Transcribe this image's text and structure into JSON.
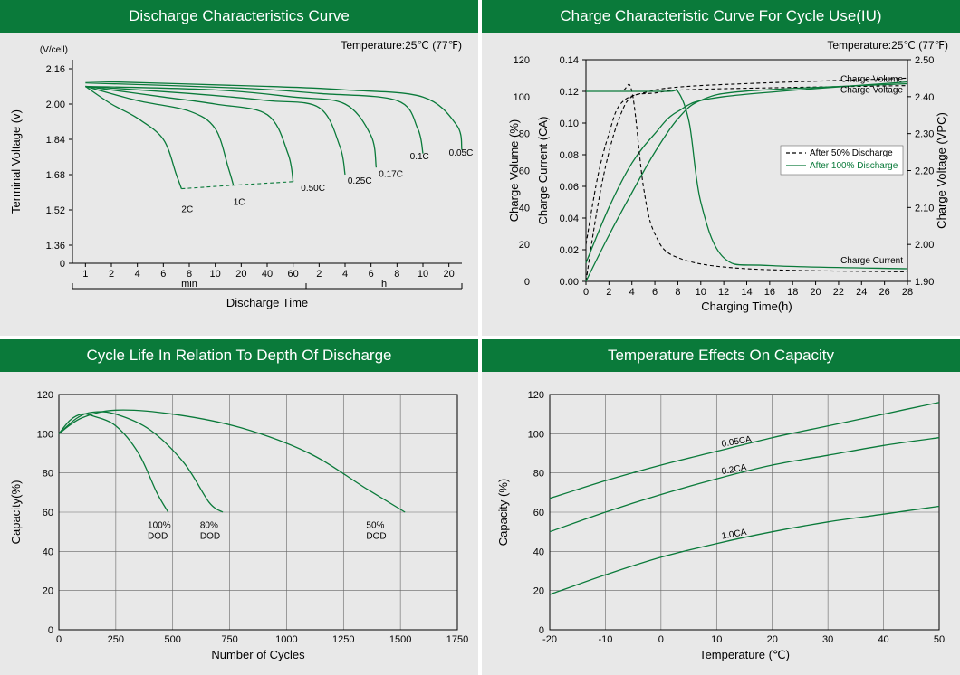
{
  "colors": {
    "header_bg": "#0a7a3a",
    "header_text": "#ffffff",
    "panel_bg": "#e8e8e8",
    "curve_green": "#0a7a3a",
    "curve_black": "#000000",
    "grid": "#666666"
  },
  "panels": {
    "discharge": {
      "title": "Discharge Characteristics Curve",
      "temp_note": "Temperature:25℃ (77℉)",
      "y_title": "Terminal  Voltage   (v)",
      "y_unit": "(V/cell)",
      "x_title": "Discharge  Time",
      "x_sub_min": "min",
      "x_sub_h": "h",
      "y_ticks": [
        "0",
        "1.36",
        "1.52",
        "1.68",
        "1.84",
        "2.00",
        "2.16"
      ],
      "x_ticks_min": [
        "1",
        "2",
        "4",
        "6",
        "8",
        "10",
        "20",
        "40",
        "60"
      ],
      "x_ticks_h": [
        "2",
        "4",
        "6",
        "8",
        "10",
        "20"
      ],
      "curve_labels": [
        "2C",
        "1C",
        "0.50C",
        "0.25C",
        "0.17C",
        "0.1C",
        "0.05C"
      ],
      "curves": [
        {
          "label": "2C",
          "color": "#0a7a3a",
          "points": [
            [
              0,
              5.5
            ],
            [
              1,
              5.0
            ],
            [
              2,
              4.6
            ],
            [
              3,
              4.0
            ],
            [
              3.5,
              3.0
            ],
            [
              3.7,
              2.6
            ]
          ]
        },
        {
          "label": "1C",
          "color": "#0a7a3a",
          "points": [
            [
              0,
              5.5
            ],
            [
              2,
              5.1
            ],
            [
              4,
              4.8
            ],
            [
              5,
              4.3
            ],
            [
              5.5,
              3.2
            ],
            [
              5.7,
              2.7
            ]
          ]
        },
        {
          "label": "0.50C",
          "color": "#0a7a3a",
          "points": [
            [
              0,
              5.5
            ],
            [
              3,
              5.2
            ],
            [
              5,
              5.0
            ],
            [
              7,
              4.7
            ],
            [
              7.8,
              3.6
            ],
            [
              8.0,
              2.8
            ]
          ]
        },
        {
          "label": "0.25C",
          "color": "#0a7a3a",
          "points": [
            [
              0,
              5.5
            ],
            [
              4,
              5.3
            ],
            [
              7,
              5.1
            ],
            [
              9,
              4.9
            ],
            [
              9.8,
              3.8
            ],
            [
              10.0,
              3.0
            ]
          ]
        },
        {
          "label": "0.17C",
          "color": "#0a7a3a",
          "points": [
            [
              0,
              5.5
            ],
            [
              5,
              5.4
            ],
            [
              8,
              5.2
            ],
            [
              10,
              5.0
            ],
            [
              11,
              4.1
            ],
            [
              11.2,
              3.2
            ]
          ]
        },
        {
          "label": "0.1C",
          "color": "#0a7a3a",
          "points": [
            [
              0,
              5.6
            ],
            [
              6,
              5.45
            ],
            [
              9,
              5.3
            ],
            [
              12,
              5.1
            ],
            [
              12.8,
              4.3
            ],
            [
              13.0,
              3.6
            ]
          ]
        },
        {
          "label": "0.05C",
          "color": "#0a7a3a",
          "points": [
            [
              0,
              5.65
            ],
            [
              7,
              5.5
            ],
            [
              10,
              5.4
            ],
            [
              13,
              5.2
            ],
            [
              14.3,
              4.4
            ],
            [
              14.5,
              3.7
            ]
          ]
        }
      ]
    },
    "charge": {
      "title": "Charge Characteristic Curve For Cycle Use(IU)",
      "temp_note": "Temperature:25℃ (77℉)",
      "y1_title": "Charge Volume (%)",
      "y2_title": "Charge Current (CA)",
      "y3_title": "Charge Voltage (VPC)",
      "x_title": "Charging Time(h)",
      "y1_ticks": [
        "0",
        "20",
        "40",
        "60",
        "80",
        "100",
        "120"
      ],
      "y2_ticks": [
        "0.00",
        "0.02",
        "0.04",
        "0.06",
        "0.08",
        "0.10",
        "0.12",
        "0.14"
      ],
      "y3_ticks": [
        "1.90",
        "2.00",
        "2.10",
        "2.20",
        "2.30",
        "2.40",
        "2.50"
      ],
      "x_ticks": [
        "0",
        "2",
        "4",
        "6",
        "8",
        "10",
        "12",
        "14",
        "16",
        "18",
        "20",
        "22",
        "24",
        "26",
        "28"
      ],
      "legend": [
        {
          "label": "After 50% Discharge",
          "style": "dash",
          "color": "#000000"
        },
        {
          "label": "After 100% Discharge",
          "style": "solid",
          "color": "#0a7a3a"
        }
      ],
      "label_volume": "Charge Volume",
      "label_voltage": "Charge Voltage",
      "label_current": "Charge Current",
      "curves_volume": [
        {
          "style": "dash",
          "color": "#000000",
          "points": [
            [
              0,
              0
            ],
            [
              1,
              40
            ],
            [
              2,
              70
            ],
            [
              3,
              90
            ],
            [
              4,
              100
            ],
            [
              6,
              102
            ],
            [
              10,
              104
            ],
            [
              28,
              106
            ]
          ]
        },
        {
          "style": "solid",
          "color": "#0a7a3a",
          "points": [
            [
              0,
              0
            ],
            [
              2,
              25
            ],
            [
              4,
              48
            ],
            [
              6,
              70
            ],
            [
              8,
              88
            ],
            [
              10,
              98
            ],
            [
              14,
              103
            ],
            [
              28,
              107
            ]
          ]
        }
      ],
      "curves_voltage": [
        {
          "style": "dash",
          "color": "#000000",
          "points": [
            [
              0,
              2.0
            ],
            [
              1,
              2.18
            ],
            [
              2,
              2.3
            ],
            [
              3,
              2.38
            ],
            [
              5,
              2.41
            ],
            [
              10,
              2.43
            ],
            [
              28,
              2.45
            ]
          ]
        },
        {
          "style": "solid",
          "color": "#0a7a3a",
          "points": [
            [
              0,
              1.95
            ],
            [
              2,
              2.1
            ],
            [
              4,
              2.22
            ],
            [
              6,
              2.3
            ],
            [
              8,
              2.36
            ],
            [
              12,
              2.4
            ],
            [
              28,
              2.44
            ]
          ]
        }
      ],
      "curves_current": [
        {
          "style": "dash",
          "color": "#000000",
          "points": [
            [
              0,
              0.12
            ],
            [
              3,
              0.12
            ],
            [
              4,
              0.12
            ],
            [
              5,
              0.06
            ],
            [
              6,
              0.03
            ],
            [
              8,
              0.015
            ],
            [
              14,
              0.008
            ],
            [
              28,
              0.006
            ]
          ]
        },
        {
          "style": "solid",
          "color": "#0a7a3a",
          "points": [
            [
              0,
              0.12
            ],
            [
              7,
              0.12
            ],
            [
              8,
              0.12
            ],
            [
              9,
              0.1
            ],
            [
              10,
              0.05
            ],
            [
              12,
              0.015
            ],
            [
              16,
              0.01
            ],
            [
              28,
              0.008
            ]
          ]
        }
      ]
    },
    "cycle": {
      "title": "Cycle Life In Relation To Depth Of Discharge",
      "y_title": "Capacity(%)",
      "x_title": "Number of Cycles",
      "y_ticks": [
        "0",
        "20",
        "40",
        "60",
        "80",
        "100",
        "120"
      ],
      "x_ticks": [
        "0",
        "250",
        "500",
        "750",
        "1000",
        "1250",
        "1500",
        "1750"
      ],
      "curves": [
        {
          "label": "100% DOD",
          "label_x": 390,
          "color": "#0a7a3a",
          "points": [
            [
              0,
              100
            ],
            [
              50,
              107
            ],
            [
              100,
              110
            ],
            [
              150,
              109
            ],
            [
              250,
              104
            ],
            [
              350,
              90
            ],
            [
              430,
              70
            ],
            [
              480,
              60
            ]
          ]
        },
        {
          "label": "80% DOD",
          "label_x": 620,
          "color": "#0a7a3a",
          "points": [
            [
              0,
              100
            ],
            [
              80,
              108
            ],
            [
              150,
              111
            ],
            [
              250,
              110
            ],
            [
              400,
              102
            ],
            [
              550,
              85
            ],
            [
              660,
              65
            ],
            [
              720,
              60
            ]
          ]
        },
        {
          "label": "50% DOD",
          "label_x": 1350,
          "color": "#0a7a3a",
          "points": [
            [
              0,
              100
            ],
            [
              100,
              108
            ],
            [
              250,
              112
            ],
            [
              500,
              110
            ],
            [
              800,
              103
            ],
            [
              1100,
              90
            ],
            [
              1350,
              72
            ],
            [
              1520,
              60
            ]
          ]
        }
      ]
    },
    "tempcap": {
      "title": "Temperature Effects On Capacity",
      "y_title": "Capacity (%)",
      "x_title": "Temperature (℃)",
      "y_ticks": [
        "0",
        "20",
        "40",
        "60",
        "80",
        "100",
        "120"
      ],
      "x_ticks": [
        "-20",
        "-10",
        "0",
        "10",
        "20",
        "30",
        "40",
        "50"
      ],
      "curves": [
        {
          "label": "0.05CA",
          "color": "#0a7a3a",
          "points": [
            [
              -20,
              67
            ],
            [
              -10,
              76
            ],
            [
              0,
              84
            ],
            [
              10,
              91
            ],
            [
              20,
              98
            ],
            [
              30,
              104
            ],
            [
              40,
              110
            ],
            [
              50,
              116
            ]
          ]
        },
        {
          "label": "0.2CA",
          "color": "#0a7a3a",
          "points": [
            [
              -20,
              50
            ],
            [
              -10,
              60
            ],
            [
              0,
              69
            ],
            [
              10,
              77
            ],
            [
              20,
              84
            ],
            [
              30,
              89
            ],
            [
              40,
              94
            ],
            [
              50,
              98
            ]
          ]
        },
        {
          "label": "1.0CA",
          "color": "#0a7a3a",
          "points": [
            [
              -20,
              18
            ],
            [
              -10,
              28
            ],
            [
              0,
              37
            ],
            [
              10,
              44
            ],
            [
              20,
              50
            ],
            [
              30,
              55
            ],
            [
              40,
              59
            ],
            [
              50,
              63
            ]
          ]
        }
      ]
    }
  }
}
